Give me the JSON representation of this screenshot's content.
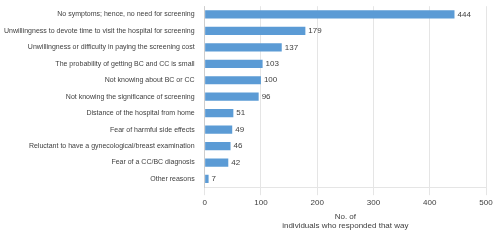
{
  "chart_data": {
    "type": "bar",
    "orientation": "horizontal",
    "categories": [
      "Other reasons",
      "Fear of a CC/BC diagnosis",
      "Reluctant to have a gynecological/breast examination",
      "Fear of harmful side effects",
      "Distance of the hospital from home",
      "Not knowing the significance of screening",
      "Not knowing about BC or CC",
      "The probability of getting BC and CC is small",
      "Unwillingness or difficulty in paying the screening cost",
      "Unwillingness to devote time to visit the hospital for screening",
      "No symptoms; hence, no need for screening"
    ],
    "values": [
      7,
      42,
      46,
      49,
      51,
      96,
      100,
      103,
      137,
      179,
      444
    ],
    "color": "#5b9bd5",
    "xlabel": "No. of\nindividuals who responded that way",
    "xlim": [
      0,
      500
    ],
    "xticks": [
      0,
      100,
      200,
      300,
      400,
      500
    ],
    "grid": true,
    "data_labels": true
  }
}
